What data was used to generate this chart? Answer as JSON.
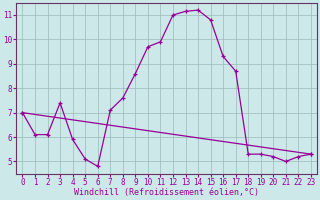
{
  "xlabel": "Windchill (Refroidissement éolien,°C)",
  "background_color": "#cce8e8",
  "line_color": "#990099",
  "grid_color": "#99bbbb",
  "spine_color": "#663366",
  "xlim": [
    -0.5,
    23.5
  ],
  "ylim": [
    4.5,
    11.5
  ],
  "yticks": [
    5,
    6,
    7,
    8,
    9,
    10,
    11
  ],
  "xticks": [
    0,
    1,
    2,
    3,
    4,
    5,
    6,
    7,
    8,
    9,
    10,
    11,
    12,
    13,
    14,
    15,
    16,
    17,
    18,
    19,
    20,
    21,
    22,
    23
  ],
  "series1_x": [
    0,
    1,
    2,
    3,
    4,
    5,
    6,
    7,
    8,
    9,
    10,
    11,
    12,
    13,
    14,
    15,
    16,
    17,
    18,
    19,
    20,
    21,
    22,
    23
  ],
  "series1_y": [
    7.0,
    6.1,
    6.1,
    7.4,
    5.9,
    5.1,
    4.8,
    7.1,
    7.6,
    8.6,
    9.7,
    9.9,
    11.0,
    11.15,
    11.2,
    10.8,
    9.3,
    8.7,
    5.3,
    5.3,
    5.2,
    5.0,
    5.2,
    5.3
  ],
  "series2_x": [
    0,
    23
  ],
  "series2_y": [
    7.0,
    5.3
  ],
  "tick_fontsize": 5.5,
  "xlabel_fontsize": 6.0
}
